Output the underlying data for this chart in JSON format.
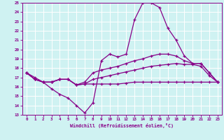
{
  "x": [
    0,
    1,
    2,
    3,
    4,
    5,
    6,
    7,
    8,
    9,
    10,
    11,
    12,
    13,
    14,
    15,
    16,
    17,
    18,
    19,
    20,
    21,
    22,
    23
  ],
  "line1": [
    17.5,
    17.0,
    16.5,
    15.8,
    15.2,
    14.8,
    14.0,
    13.2,
    14.3,
    18.8,
    19.5,
    19.2,
    19.5,
    23.2,
    25.0,
    25.0,
    24.5,
    22.3,
    21.0,
    19.3,
    18.5,
    18.5,
    17.5,
    16.5
  ],
  "line2": [
    17.5,
    16.8,
    16.5,
    16.5,
    16.8,
    16.8,
    16.2,
    16.5,
    17.5,
    17.8,
    18.0,
    18.2,
    18.5,
    18.8,
    19.0,
    19.3,
    19.5,
    19.5,
    19.3,
    18.8,
    18.5,
    18.5,
    17.5,
    16.5
  ],
  "line3": [
    17.5,
    16.8,
    16.5,
    16.5,
    16.8,
    16.8,
    16.2,
    16.3,
    16.8,
    17.0,
    17.2,
    17.4,
    17.6,
    17.8,
    18.0,
    18.2,
    18.3,
    18.4,
    18.5,
    18.4,
    18.4,
    18.2,
    17.2,
    16.5
  ],
  "line4": [
    17.5,
    16.8,
    16.5,
    16.5,
    16.8,
    16.8,
    16.2,
    16.3,
    16.3,
    16.3,
    16.3,
    16.3,
    16.4,
    16.5,
    16.5,
    16.5,
    16.5,
    16.5,
    16.5,
    16.5,
    16.5,
    16.5,
    16.5,
    16.5
  ],
  "ylim": [
    13,
    25
  ],
  "xlim": [
    -0.5,
    23.5
  ],
  "yticks": [
    13,
    14,
    15,
    16,
    17,
    18,
    19,
    20,
    21,
    22,
    23,
    24,
    25
  ],
  "xticks": [
    0,
    1,
    2,
    3,
    4,
    5,
    6,
    7,
    8,
    9,
    10,
    11,
    12,
    13,
    14,
    15,
    16,
    17,
    18,
    19,
    20,
    21,
    22,
    23
  ],
  "xlabel": "Windchill (Refroidissement éolien,°C)",
  "bg_color": "#cff2f2",
  "line_color": "#880088",
  "grid_color": "#ffffff",
  "marker": "+"
}
